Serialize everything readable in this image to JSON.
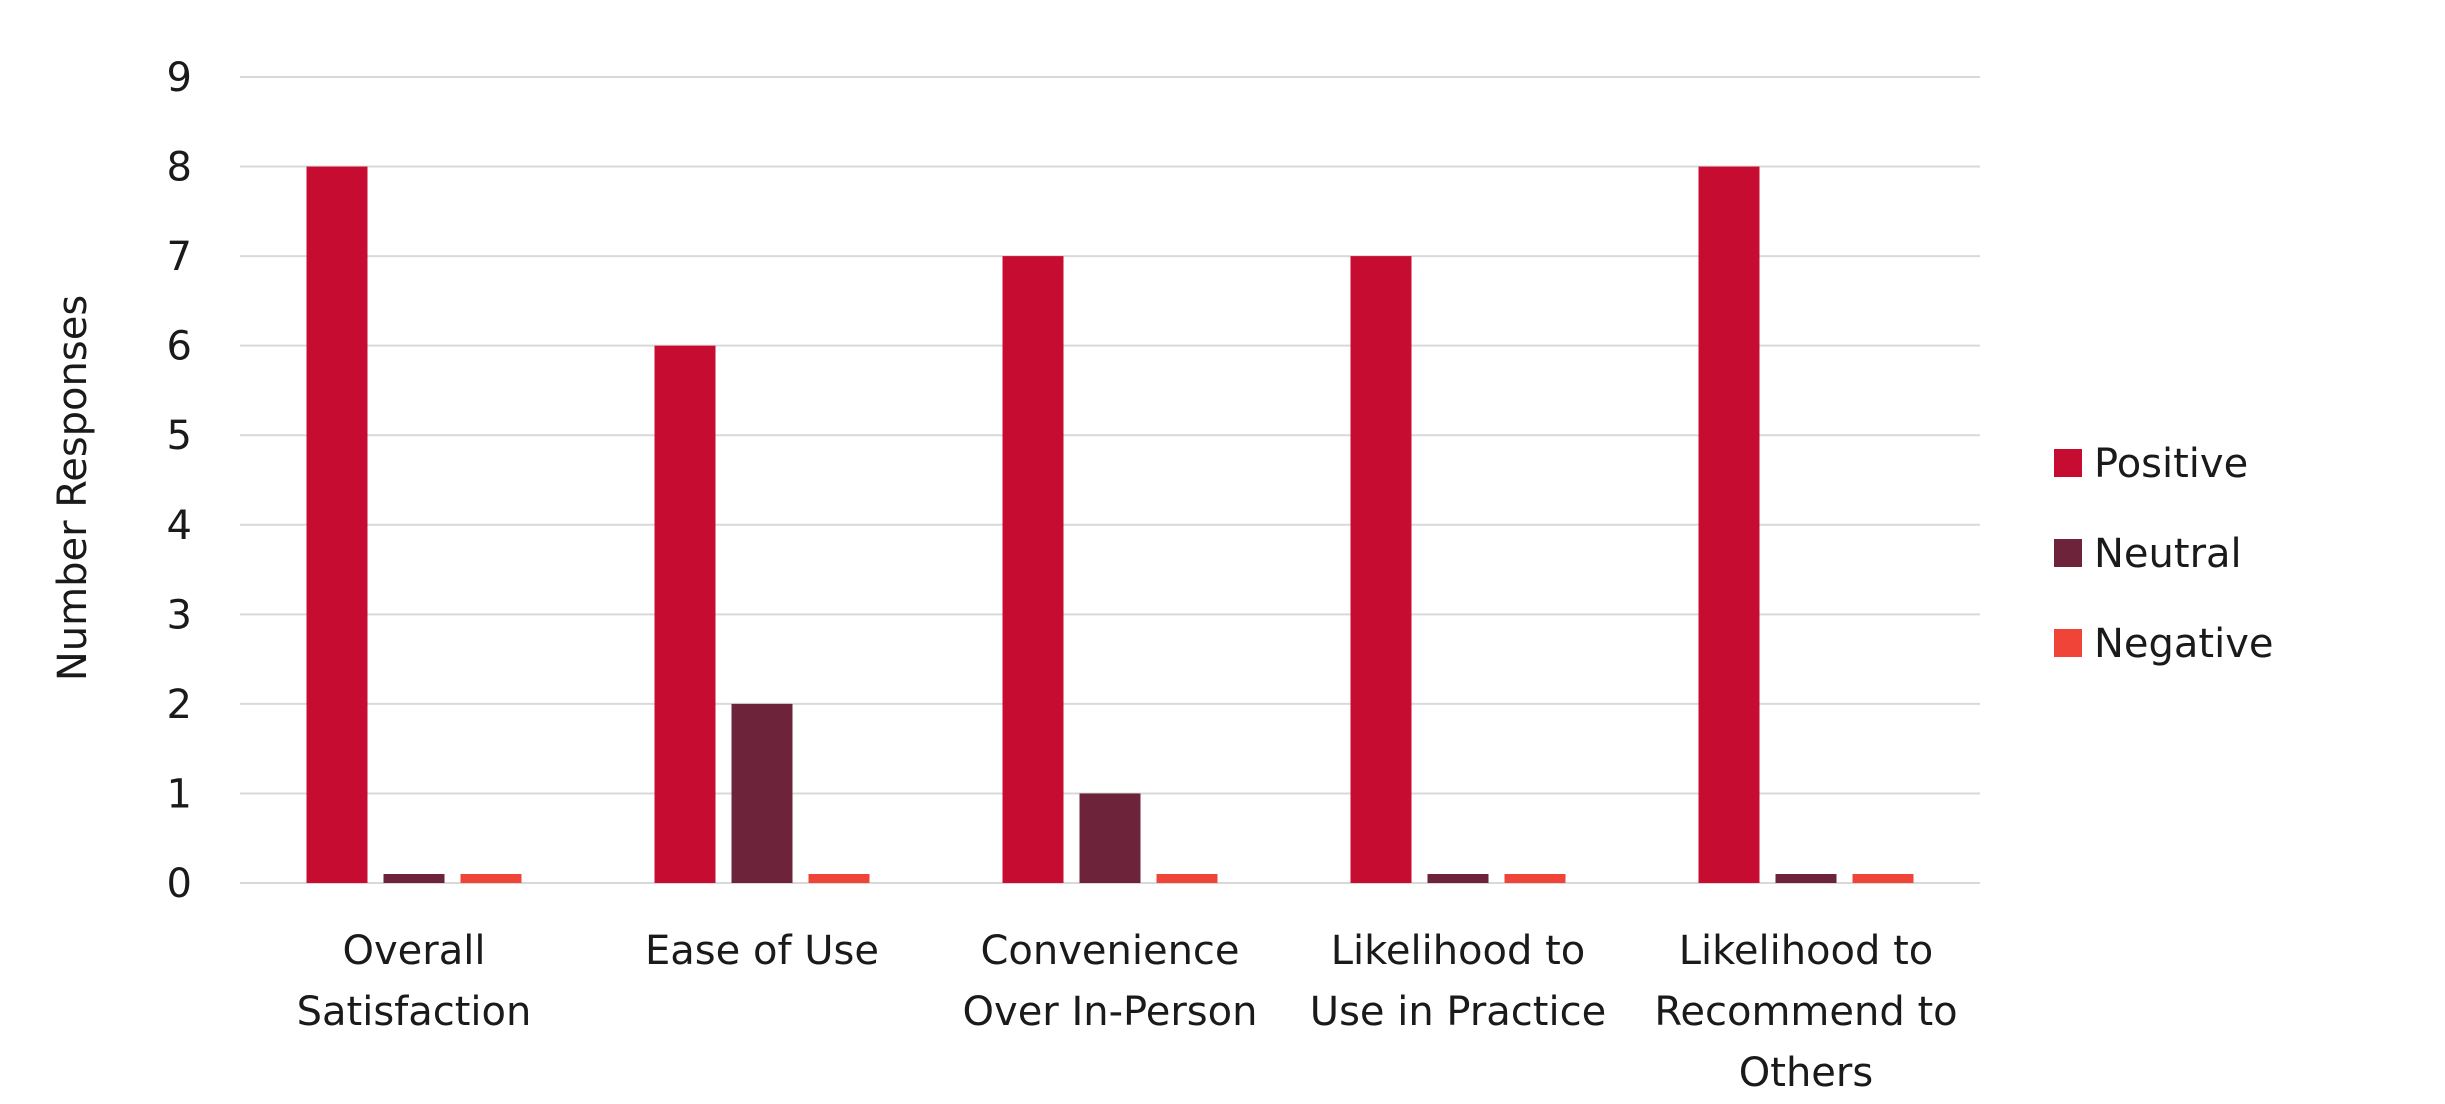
{
  "chart_data": {
    "type": "bar",
    "title": "",
    "xlabel": "",
    "ylabel": "Number Responses",
    "ylim": [
      0,
      9
    ],
    "yticks": [
      0,
      1,
      2,
      3,
      4,
      5,
      6,
      7,
      8,
      9
    ],
    "grid": true,
    "legend_position": "right",
    "categories": [
      [
        "Overall",
        "Satisfaction"
      ],
      [
        "Ease of Use"
      ],
      [
        "Convenience",
        "Over In-Person"
      ],
      [
        "Likelihood to",
        "Use in Practice"
      ],
      [
        "Likelihood to",
        "Recommend to",
        "Others"
      ]
    ],
    "series": [
      {
        "name": "Positive",
        "color": "#c60c30",
        "values": [
          8,
          6,
          7,
          7,
          8
        ]
      },
      {
        "name": "Neutral",
        "color": "#6d233a",
        "values": [
          0,
          2,
          1,
          0,
          0
        ]
      },
      {
        "name": "Negative",
        "color": "#f04438",
        "values": [
          0,
          0,
          0,
          0,
          0
        ]
      }
    ]
  }
}
